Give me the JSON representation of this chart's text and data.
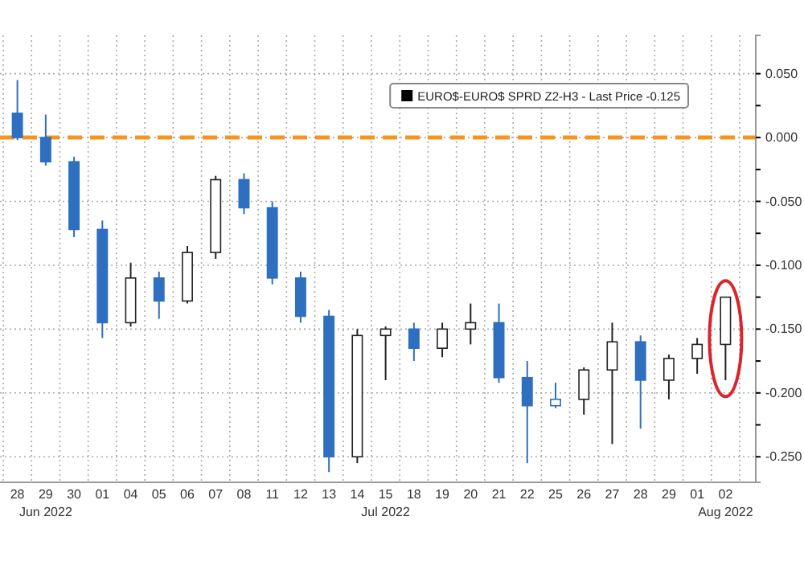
{
  "chart_data": {
    "type": "candlestick",
    "categories": [
      "28",
      "29\nJun 2022",
      "30",
      "01",
      "04",
      "05",
      "06",
      "07",
      "08",
      "11",
      "12",
      "13",
      "14",
      "15\nJul 2022",
      "18",
      "19",
      "20",
      "21",
      "22",
      "25",
      "26",
      "27",
      "28",
      "29",
      "01",
      "02\nAug 2022"
    ],
    "series": [
      {
        "name": "EURO$-EURO$ SPRD Z2-H3 - Last Price -0.125",
        "color": "#000000",
        "ohlc": [
          [
            0.019,
            0.045,
            -0.002,
            0.0
          ],
          [
            0.0,
            0.018,
            -0.022,
            -0.019
          ],
          [
            -0.019,
            -0.015,
            -0.078,
            -0.072
          ],
          [
            -0.072,
            -0.065,
            -0.157,
            -0.145
          ],
          [
            -0.145,
            -0.098,
            -0.148,
            -0.11
          ],
          [
            -0.11,
            -0.105,
            -0.142,
            -0.128
          ],
          [
            -0.128,
            -0.085,
            -0.13,
            -0.09
          ],
          [
            -0.09,
            -0.03,
            -0.095,
            -0.033
          ],
          [
            -0.033,
            -0.028,
            -0.06,
            -0.055
          ],
          [
            -0.055,
            -0.05,
            -0.115,
            -0.11
          ],
          [
            -0.11,
            -0.105,
            -0.145,
            -0.14
          ],
          [
            -0.14,
            -0.135,
            -0.262,
            -0.25
          ],
          [
            -0.25,
            -0.15,
            -0.255,
            -0.155
          ],
          [
            -0.155,
            -0.148,
            -0.19,
            -0.15
          ],
          [
            -0.15,
            -0.145,
            -0.175,
            -0.165
          ],
          [
            -0.165,
            -0.145,
            -0.172,
            -0.15
          ],
          [
            -0.15,
            -0.13,
            -0.162,
            -0.145
          ],
          [
            -0.145,
            -0.13,
            -0.192,
            -0.188
          ],
          [
            -0.188,
            -0.175,
            -0.255,
            -0.21
          ],
          [
            -0.21,
            -0.192,
            -0.212,
            -0.205
          ],
          [
            -0.205,
            -0.18,
            -0.217,
            -0.182
          ],
          [
            -0.182,
            -0.145,
            -0.24,
            -0.16
          ],
          [
            -0.16,
            -0.155,
            -0.228,
            -0.19
          ],
          [
            -0.19,
            -0.17,
            -0.205,
            -0.173
          ],
          [
            -0.173,
            -0.157,
            -0.185,
            -0.162
          ],
          [
            -0.162,
            -0.125,
            -0.19,
            -0.125
          ]
        ],
        "colors": [
          "#2e6fc0",
          "#2e6fc0",
          "#2e6fc0",
          "#2e6fc0",
          "#222222",
          "#2e6fc0",
          "#222222",
          "#222222",
          "#2e6fc0",
          "#2e6fc0",
          "#2e6fc0",
          "#2e6fc0",
          "#222222",
          "#222222",
          "#2e6fc0",
          "#222222",
          "#222222",
          "#2e6fc0",
          "#2e6fc0",
          "#2e6fc0",
          "#222222",
          "#222222",
          "#2e6fc0",
          "#222222",
          "#222222",
          "#222222"
        ]
      }
    ],
    "ylim": [
      -0.27,
      0.08
    ],
    "yticks": [
      {
        "value": 0.05,
        "label": "0.050"
      },
      {
        "value": 0.025,
        "label": null
      },
      {
        "value": 0,
        "label": "0.000"
      },
      {
        "value": -0.025,
        "label": null
      },
      {
        "value": -0.05,
        "label": "-0.050"
      },
      {
        "value": -0.075,
        "label": null
      },
      {
        "value": -0.1,
        "label": "-0.100"
      },
      {
        "value": -0.125,
        "label": null
      },
      {
        "value": -0.15,
        "label": "-0.150"
      },
      {
        "value": -0.175,
        "label": null
      },
      {
        "value": -0.2,
        "label": "-0.200"
      },
      {
        "value": -0.225,
        "label": null
      },
      {
        "value": -0.25,
        "label": "-0.250"
      }
    ],
    "ref_lines": [
      {
        "axis": "y",
        "value": 0,
        "color": "#f7931e",
        "line_style": "dashed"
      }
    ],
    "grid": true,
    "legend": "top right"
  }
}
